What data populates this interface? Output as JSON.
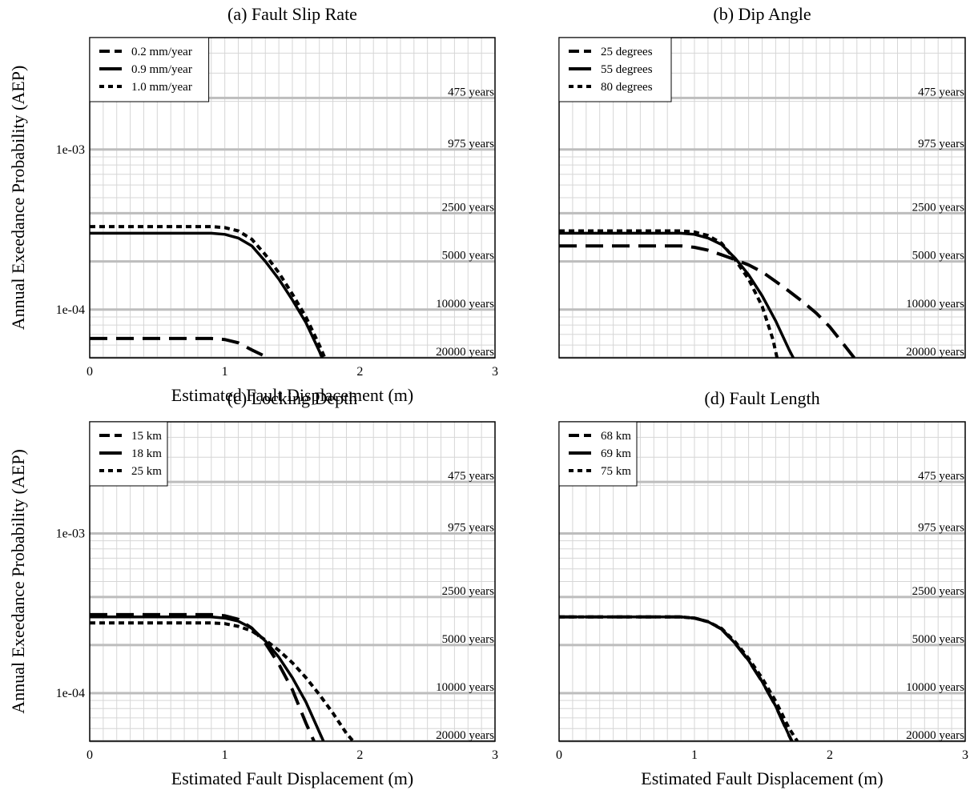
{
  "chart_data": [
    {
      "type": "line",
      "title": "(a) Fault Slip Rate",
      "xlabel": "Estimated Fault Displacement (m)",
      "ylabel": "Annual Exeedance Probability (AEP)",
      "xlim": [
        0,
        3
      ],
      "ylim": [
        5e-05,
        0.005
      ],
      "yscale": "log",
      "xticks": [
        0,
        1,
        2,
        3
      ],
      "xtick_labels": [
        "0",
        "1",
        "2",
        "3"
      ],
      "ytick_values": [
        0.001,
        0.0001
      ],
      "ytick_labels": [
        "1e-03",
        "1e-04"
      ],
      "return_periods": [
        {
          "label": "475 years",
          "aep": 0.0021
        },
        {
          "label": "975 years",
          "aep": 0.001
        },
        {
          "label": "2500 years",
          "aep": 0.0004
        },
        {
          "label": "5000 years",
          "aep": 0.0002
        },
        {
          "label": "10000 years",
          "aep": 0.0001
        },
        {
          "label": "20000 years",
          "aep": 5e-05
        }
      ],
      "legend_position": "top-left",
      "grid": true,
      "series": [
        {
          "name": "0.2 mm/year",
          "style": "dashed",
          "x": [
            0,
            0.9,
            1.0,
            1.1,
            1.2,
            1.3
          ],
          "y": [
            6.6e-05,
            6.6e-05,
            6.5e-05,
            6.2e-05,
            5.6e-05,
            5.1e-05
          ]
        },
        {
          "name": "0.9 mm/year",
          "style": "solid",
          "x": [
            0,
            0.9,
            1.0,
            1.1,
            1.2,
            1.3,
            1.4,
            1.5,
            1.6,
            1.7,
            1.72
          ],
          "y": [
            0.0003,
            0.0003,
            0.000295,
            0.00028,
            0.00025,
            0.0002,
            0.000155,
            0.000115,
            8.3e-05,
            5.5e-05,
            5e-05
          ]
        },
        {
          "name": "1.0 mm/year",
          "style": "dotted",
          "x": [
            0,
            0.9,
            1.0,
            1.1,
            1.2,
            1.3,
            1.4,
            1.5,
            1.6,
            1.7,
            1.74
          ],
          "y": [
            0.00033,
            0.00033,
            0.000325,
            0.00031,
            0.000275,
            0.00022,
            0.00017,
            0.000125,
            9e-05,
            6e-05,
            5e-05
          ]
        }
      ]
    },
    {
      "type": "line",
      "title": "(b) Dip Angle",
      "xlabel": "",
      "ylabel": "",
      "xlim": [
        0,
        3
      ],
      "ylim": [
        5e-05,
        0.005
      ],
      "yscale": "log",
      "xticks": [
        0,
        1,
        2,
        3
      ],
      "xtick_labels": [],
      "ytick_values": [],
      "ytick_labels": [],
      "return_periods": [
        {
          "label": "475 years",
          "aep": 0.0021
        },
        {
          "label": "975 years",
          "aep": 0.001
        },
        {
          "label": "2500 years",
          "aep": 0.0004
        },
        {
          "label": "5000 years",
          "aep": 0.0002
        },
        {
          "label": "10000 years",
          "aep": 0.0001
        },
        {
          "label": "20000 years",
          "aep": 5e-05
        }
      ],
      "legend_position": "top-left",
      "grid": true,
      "series": [
        {
          "name": "25 degrees",
          "style": "dashed",
          "x": [
            0,
            0.9,
            1.0,
            1.1,
            1.2,
            1.3,
            1.4,
            1.5,
            1.6,
            1.7,
            1.8,
            1.9,
            2.0,
            2.1,
            2.18
          ],
          "y": [
            0.00025,
            0.00025,
            0.000245,
            0.000235,
            0.00022,
            0.000205,
            0.00019,
            0.000172,
            0.00015,
            0.00013,
            0.000112,
            9.5e-05,
            7.8e-05,
            6.1e-05,
            5e-05
          ]
        },
        {
          "name": "55 degrees",
          "style": "solid",
          "x": [
            0,
            0.9,
            1.0,
            1.1,
            1.2,
            1.3,
            1.4,
            1.5,
            1.6,
            1.7,
            1.73
          ],
          "y": [
            0.0003,
            0.0003,
            0.000295,
            0.00028,
            0.000255,
            0.00021,
            0.000165,
            0.000122,
            8.5e-05,
            5.6e-05,
            5e-05
          ]
        },
        {
          "name": "80 degrees",
          "style": "dotted",
          "x": [
            0,
            0.9,
            1.0,
            1.1,
            1.2,
            1.3,
            1.4,
            1.5,
            1.58,
            1.61
          ],
          "y": [
            0.00031,
            0.00031,
            0.000305,
            0.00029,
            0.00026,
            0.000205,
            0.000155,
            0.000105,
            6.5e-05,
            5e-05
          ]
        }
      ]
    },
    {
      "type": "line",
      "title": "(c) Locking Depth",
      "xlabel": "Estimated Fault Displacement (m)",
      "ylabel": "Annual Exeedance Probability (AEP)",
      "xlim": [
        0,
        3
      ],
      "ylim": [
        5e-05,
        0.005
      ],
      "yscale": "log",
      "xticks": [
        0,
        1,
        2,
        3
      ],
      "xtick_labels": [
        "0",
        "1",
        "2",
        "3"
      ],
      "ytick_values": [
        0.001,
        0.0001
      ],
      "ytick_labels": [
        "1e-03",
        "1e-04"
      ],
      "return_periods": [
        {
          "label": "475 years",
          "aep": 0.0021
        },
        {
          "label": "975 years",
          "aep": 0.001
        },
        {
          "label": "2500 years",
          "aep": 0.0004
        },
        {
          "label": "5000 years",
          "aep": 0.0002
        },
        {
          "label": "10000 years",
          "aep": 0.0001
        },
        {
          "label": "20000 years",
          "aep": 5e-05
        }
      ],
      "legend_position": "top-left",
      "grid": true,
      "series": [
        {
          "name": "15 km",
          "style": "dashed",
          "x": [
            0,
            0.9,
            1.0,
            1.1,
            1.2,
            1.3,
            1.4,
            1.5,
            1.6,
            1.66
          ],
          "y": [
            0.00031,
            0.00031,
            0.000305,
            0.00029,
            0.000255,
            0.000205,
            0.000152,
            0.000105,
            6.5e-05,
            5e-05
          ]
        },
        {
          "name": "18 km",
          "style": "solid",
          "x": [
            0,
            0.9,
            1.0,
            1.1,
            1.2,
            1.3,
            1.4,
            1.5,
            1.6,
            1.7,
            1.73
          ],
          "y": [
            0.0003,
            0.0003,
            0.000295,
            0.000282,
            0.000255,
            0.000212,
            0.000168,
            0.000125,
            8.8e-05,
            5.7e-05,
            5e-05
          ]
        },
        {
          "name": "25 km",
          "style": "dotted",
          "x": [
            0,
            0.9,
            1.0,
            1.1,
            1.2,
            1.3,
            1.4,
            1.5,
            1.6,
            1.7,
            1.8,
            1.9,
            1.95
          ],
          "y": [
            0.000275,
            0.000275,
            0.000272,
            0.000262,
            0.000245,
            0.000215,
            0.000185,
            0.000155,
            0.000125,
            9.8e-05,
            7.5e-05,
            5.6e-05,
            5e-05
          ]
        }
      ]
    },
    {
      "type": "line",
      "title": "(d) Fault Length",
      "xlabel": "Estimated Fault Displacement (m)",
      "ylabel": "",
      "xlim": [
        0,
        3
      ],
      "ylim": [
        5e-05,
        0.005
      ],
      "yscale": "log",
      "xticks": [
        0,
        1,
        2,
        3
      ],
      "xtick_labels": [
        "0",
        "1",
        "2",
        "3"
      ],
      "ytick_values": [],
      "ytick_labels": [],
      "return_periods": [
        {
          "label": "475 years",
          "aep": 0.0021
        },
        {
          "label": "975 years",
          "aep": 0.001
        },
        {
          "label": "2500 years",
          "aep": 0.0004
        },
        {
          "label": "5000 years",
          "aep": 0.0002
        },
        {
          "label": "10000 years",
          "aep": 0.0001
        },
        {
          "label": "20000 years",
          "aep": 5e-05
        }
      ],
      "legend_position": "top-left",
      "grid": true,
      "series": [
        {
          "name": "68 km",
          "style": "dashed",
          "x": [
            0,
            0.9,
            1.0,
            1.1,
            1.2,
            1.3,
            1.4,
            1.5,
            1.6,
            1.7,
            1.72
          ],
          "y": [
            0.0003,
            0.0003,
            0.000295,
            0.00028,
            0.000252,
            0.000205,
            0.00016,
            0.000118,
            8.3e-05,
            5.4e-05,
            5e-05
          ]
        },
        {
          "name": "69 km",
          "style": "solid",
          "x": [
            0,
            0.9,
            1.0,
            1.1,
            1.2,
            1.3,
            1.4,
            1.5,
            1.6,
            1.7,
            1.72
          ],
          "y": [
            0.0003,
            0.0003,
            0.000295,
            0.00028,
            0.000252,
            0.000205,
            0.00016,
            0.000118,
            8.3e-05,
            5.4e-05,
            5e-05
          ]
        },
        {
          "name": "75 km",
          "style": "dotted",
          "x": [
            0,
            0.9,
            1.0,
            1.1,
            1.2,
            1.3,
            1.4,
            1.5,
            1.6,
            1.7,
            1.76
          ],
          "y": [
            0.0003,
            0.0003,
            0.000295,
            0.00028,
            0.000254,
            0.00021,
            0.000165,
            0.000124,
            8.9e-05,
            6e-05,
            5e-05
          ]
        }
      ]
    }
  ]
}
